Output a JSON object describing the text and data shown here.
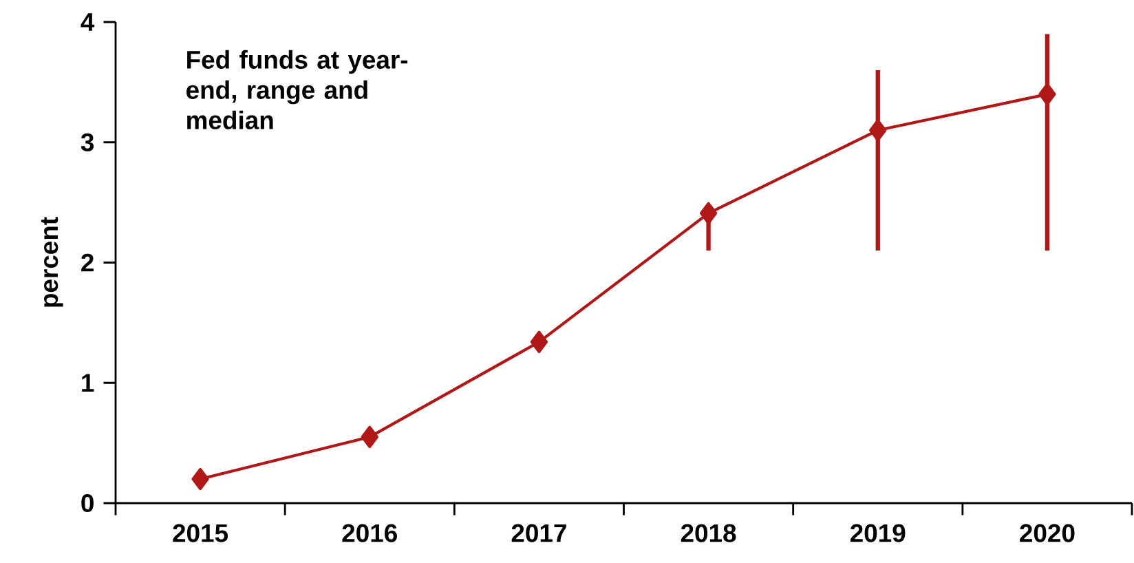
{
  "chart_data": {
    "type": "line",
    "title": "Fed funds at year-end, range and median",
    "ylabel": "percent",
    "categories": [
      "2015",
      "2016",
      "2017",
      "2018",
      "2019",
      "2020"
    ],
    "values": [
      0.2,
      0.55,
      1.34,
      2.41,
      3.1,
      3.4
    ],
    "errors": [
      null,
      null,
      null,
      [
        2.1,
        2.47
      ],
      [
        2.1,
        3.6
      ],
      [
        2.1,
        3.9
      ]
    ],
    "color": "#b01818",
    "marker": "diamond",
    "line_style": "solid",
    "ylim": [
      0,
      4
    ],
    "yticks": [
      0,
      1,
      2,
      3,
      4
    ],
    "grid": false
  }
}
